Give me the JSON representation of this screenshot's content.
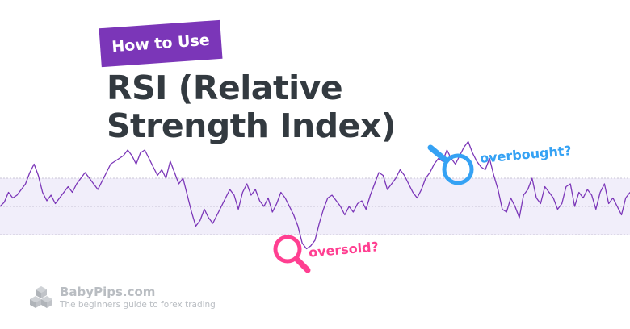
{
  "badge": {
    "text": "How to Use"
  },
  "title": {
    "line1": "RSI (Relative",
    "line2": "Strength Index)"
  },
  "callouts": {
    "oversold": {
      "label": "oversold?",
      "color": "#ff3f91"
    },
    "overbought": {
      "label": "overbought?",
      "color": "#35a2f4"
    }
  },
  "logo": {
    "name": "BabyPips.com",
    "tagline": "The beginners guide to forex trading",
    "icon": "cube-cluster-icon"
  },
  "colors": {
    "badge_bg": "#7b36b8",
    "title_text": "#333a40",
    "rsi_line": "#7b36b8",
    "band_fill": "#f1eefa",
    "logo_gray": "#b9bdc2"
  },
  "chart_data": {
    "type": "line",
    "series": [
      {
        "values": [
          50,
          53,
          60,
          56,
          58,
          62,
          66,
          74,
          80,
          72,
          60,
          54,
          58,
          52,
          56,
          60,
          64,
          60,
          66,
          70,
          74,
          70,
          66,
          62,
          68,
          74,
          80,
          82,
          84,
          86,
          90,
          86,
          80,
          88,
          90,
          84,
          78,
          72,
          76,
          70,
          82,
          74,
          66,
          70,
          58,
          46,
          36,
          40,
          48,
          42,
          38,
          44,
          50,
          56,
          62,
          58,
          48,
          60,
          66,
          58,
          62,
          54,
          50,
          56,
          46,
          52,
          60,
          56,
          50,
          44,
          36,
          24,
          20,
          22,
          26,
          38,
          48,
          56,
          58,
          54,
          50,
          44,
          50,
          46,
          52,
          54,
          48,
          58,
          66,
          74,
          72,
          62,
          66,
          70,
          76,
          72,
          66,
          60,
          56,
          62,
          70,
          74,
          80,
          84,
          82,
          90,
          84,
          80,
          86,
          92,
          96,
          88,
          82,
          78,
          76,
          84,
          72,
          62,
          48,
          46,
          56,
          50,
          42,
          58,
          62,
          70,
          56,
          52,
          64,
          60,
          56,
          48,
          52,
          64,
          66,
          50,
          60,
          56,
          62,
          58,
          48,
          60,
          66,
          52,
          56,
          50,
          44,
          56,
          60
        ]
      }
    ],
    "bands": {
      "upper": 70,
      "lower": 30
    },
    "ylim": [
      0,
      100
    ]
  }
}
